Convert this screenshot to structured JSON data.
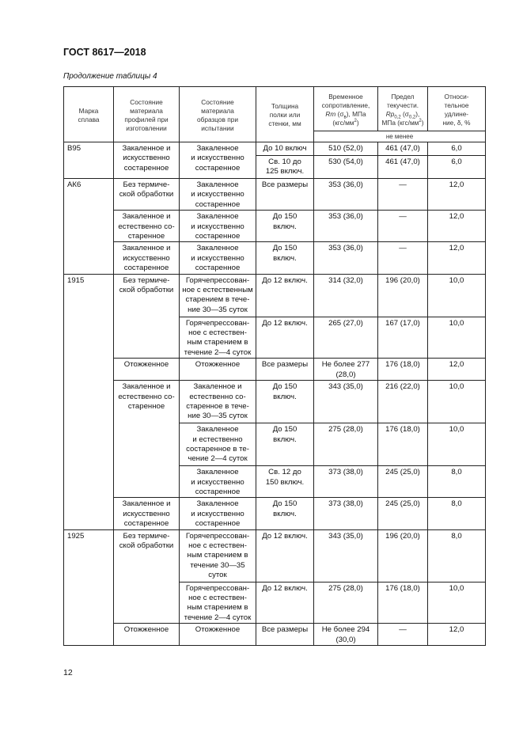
{
  "header": {
    "doc_title": "ГОСТ 8617—2018",
    "caption": "Продолжение таблицы 4",
    "page_number": "12"
  },
  "table": {
    "columns": {
      "grade": "Марка\nсплава",
      "profile_state": "Состояние\nматериала\nпрофилей при\nизготовлении",
      "sample_state": "Состояние\nматериала\nобразцов при\nиспытании",
      "thickness": "Толщина\nполки или\nстенки, мм",
      "rm": {
        "a": "Временное\nсопротивление,\n",
        "sym": "Rm",
        "b": " (σ",
        "sub": "в",
        "c": "), МПа\n(кгс/мм",
        "sup": "2",
        "d": ")"
      },
      "rp": {
        "a": "Предел\nтекучести.\n",
        "sym": "Rp",
        "sub1": "0,2",
        "b": " (σ",
        "sub2": "0,2",
        "c": "),\nМПа (кгс/мм",
        "sup": "2",
        "d": ")"
      },
      "elong": "Относи-\nтельное\nудлине-\nние, δ, %",
      "not_less": "не менее"
    },
    "rows": [
      [
        {
          "t": "В95",
          "rs": 2,
          "l": 1
        },
        {
          "t": "Закаленное и\nискусственно\nсостаренное",
          "rs": 2
        },
        {
          "t": "Закаленное\nи искусственно\nсостаренное",
          "rs": 2
        },
        {
          "t": "До 10 включ"
        },
        {
          "t": "510 (52,0)"
        },
        {
          "t": "461 (47,0)"
        },
        {
          "t": "6,0"
        }
      ],
      [
        {
          "t": "Св. 10 до\n125 включ."
        },
        {
          "t": "530 (54,0)"
        },
        {
          "t": "461 (47,0)"
        },
        {
          "t": "6,0"
        }
      ],
      [
        {
          "t": "АК6",
          "rs": 3,
          "l": 1
        },
        {
          "t": "Без термиче-\nской обработки"
        },
        {
          "t": "Закаленное\nи искусственно\nсостаренное"
        },
        {
          "t": "Все размеры"
        },
        {
          "t": "353 (36,0)"
        },
        {
          "t": "—"
        },
        {
          "t": "12,0"
        }
      ],
      [
        {
          "t": "Закаленное и\nестественно со-\nстаренное"
        },
        {
          "t": "Закаленное\nи искусственно\nсостаренное"
        },
        {
          "t": "До 150\nвключ."
        },
        {
          "t": "353 (36,0)"
        },
        {
          "t": "—"
        },
        {
          "t": "12,0"
        }
      ],
      [
        {
          "t": "Закаленное и\nискусственно\nсостаренное"
        },
        {
          "t": "Закаленное\nи искусственно\nсостаренное"
        },
        {
          "t": "До 150\nвключ."
        },
        {
          "t": "353 (36,0)"
        },
        {
          "t": "—"
        },
        {
          "t": "12,0"
        }
      ],
      [
        {
          "t": "1915",
          "rs": 7,
          "l": 1
        },
        {
          "t": "Без термиче-\nской обработки",
          "rs": 2
        },
        {
          "t": "Горячепрессован-\nное с естественным\nстарением в тече-\nние  30—35 суток"
        },
        {
          "t": "До 12 включ."
        },
        {
          "t": "314 (32,0)"
        },
        {
          "t": "196 (20,0)"
        },
        {
          "t": "10,0"
        }
      ],
      [
        {
          "t": "Горячепрессован-\nное с естествен-\nным старением в\nтечение  2—4 суток"
        },
        {
          "t": "До 12 включ."
        },
        {
          "t": "265 (27,0)"
        },
        {
          "t": "167 (17,0)"
        },
        {
          "t": "10,0"
        }
      ],
      [
        {
          "t": "Отожженное"
        },
        {
          "t": "Отожженное"
        },
        {
          "t": "Все размеры"
        },
        {
          "t": "Не более 277\n(28,0)"
        },
        {
          "t": "176 (18,0)"
        },
        {
          "t": "12,0"
        }
      ],
      [
        {
          "t": "Закаленное и\nестественно со-\nстаренное",
          "rs": 3
        },
        {
          "t": "Закаленное и\nестественно со-\nстаренное в тече-\nние 30—35 суток"
        },
        {
          "t": "До 150\nвключ."
        },
        {
          "t": "343 (35,0)"
        },
        {
          "t": "216 (22,0)"
        },
        {
          "t": "10,0"
        }
      ],
      [
        {
          "t": "Закаленное\nи естественно\nсостаренное в те-\nчение 2—4 суток"
        },
        {
          "t": "До 150\nвключ."
        },
        {
          "t": "275 (28,0)"
        },
        {
          "t": "176 (18,0)"
        },
        {
          "t": "10,0"
        }
      ],
      [
        {
          "t": "Закаленное\nи искусственно\nсостаренное"
        },
        {
          "t": "Св. 12 до\n150 включ."
        },
        {
          "t": "373 (38,0)"
        },
        {
          "t": "245 (25,0)"
        },
        {
          "t": "8,0"
        }
      ],
      [
        {
          "t": "Закаленное и\nискусственно\nсостаренное"
        },
        {
          "t": "Закаленное\nи искусственно\nсостаренное"
        },
        {
          "t": "До 150\nвключ."
        },
        {
          "t": "373 (38,0)"
        },
        {
          "t": "245 (25,0)"
        },
        {
          "t": "8,0"
        }
      ],
      [
        {
          "t": "1925",
          "rs": 3,
          "l": 1
        },
        {
          "t": "Без термиче-\nской обработки",
          "rs": 2
        },
        {
          "t": "Горячепрессован-\nное с естествен-\nным старением в\nтечение 30—35\nсуток"
        },
        {
          "t": "До 12 включ."
        },
        {
          "t": "343 (35,0)"
        },
        {
          "t": "196 (20,0)"
        },
        {
          "t": "8,0"
        }
      ],
      [
        {
          "t": "Горячепрессован-\nное с естествен-\nным старением в\nтечение 2—4 суток"
        },
        {
          "t": "До 12 включ."
        },
        {
          "t": "275 (28,0)"
        },
        {
          "t": "176 (18,0)"
        },
        {
          "t": "10,0"
        }
      ],
      [
        {
          "t": "Отожженное"
        },
        {
          "t": "Отожженное"
        },
        {
          "t": "Все размеры"
        },
        {
          "t": "Не более 294\n(30,0)"
        },
        {
          "t": "—"
        },
        {
          "t": "12,0"
        }
      ]
    ]
  }
}
